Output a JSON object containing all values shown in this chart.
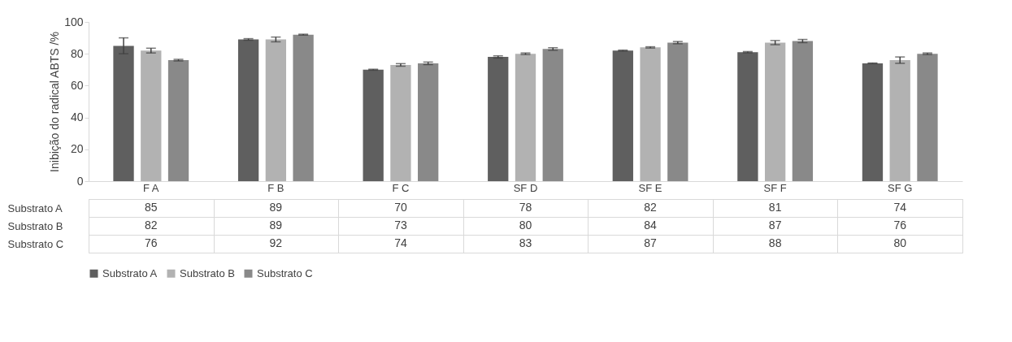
{
  "chart_data": {
    "type": "bar",
    "ylabel": "Inibição do radical ABTS /%",
    "categories": [
      "F A",
      "F B",
      "F C",
      "SF D",
      "SF E",
      "SF F",
      "SF G"
    ],
    "series": [
      {
        "name": "Substrato A",
        "color": "#5f5f5f",
        "values": [
          85,
          89,
          70,
          78,
          82,
          81,
          74
        ],
        "errors": [
          5,
          0.5,
          0.3,
          0.7,
          0.3,
          0.4,
          0.2
        ]
      },
      {
        "name": "Substrato B",
        "color": "#b2b2b2",
        "values": [
          82,
          89,
          73,
          80,
          84,
          87,
          76
        ],
        "errors": [
          1.5,
          1.5,
          0.8,
          0.5,
          0.4,
          1.3,
          2
        ]
      },
      {
        "name": "Substrato C",
        "color": "#898989",
        "values": [
          76,
          92,
          74,
          83,
          87,
          88,
          80
        ],
        "errors": [
          0.5,
          0.3,
          0.8,
          0.8,
          0.7,
          1,
          0.5
        ]
      }
    ],
    "ylim": [
      0,
      100
    ],
    "yticks": [
      0,
      20,
      40,
      60,
      80,
      100
    ],
    "data_labels": true,
    "legend": "bottom",
    "grid": false
  }
}
